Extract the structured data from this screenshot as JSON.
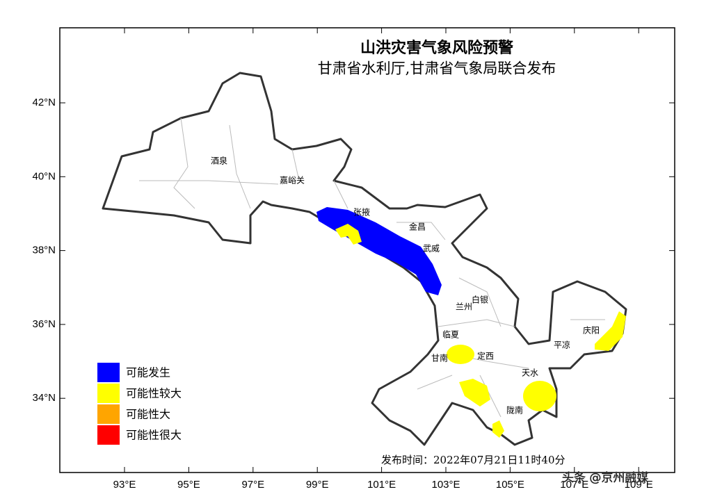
{
  "header": {
    "title": "山洪灾害气象风险预警",
    "subtitle": "甘肃省水利厅,甘肃省气象局联合发布"
  },
  "axes": {
    "latitude": [
      "42°N",
      "40°N",
      "38°N",
      "36°N",
      "34°N"
    ],
    "longitude": [
      "93°E",
      "95°E",
      "97°E",
      "99°E",
      "101°E",
      "103°E",
      "105°E",
      "107°E",
      "109°E"
    ]
  },
  "places": [
    "酒泉",
    "嘉峪关",
    "张掖",
    "金昌",
    "武威",
    "白银",
    "兰州",
    "临夏",
    "庆阳",
    "平凉",
    "甘南",
    "定西",
    "天水",
    "陇南"
  ],
  "legend": [
    {
      "label": "可能发生",
      "color": "#0000ff"
    },
    {
      "label": "可能性较大",
      "color": "#ffff00"
    },
    {
      "label": "可能性大",
      "color": "#ffa500"
    },
    {
      "label": "可能性很大",
      "color": "#ff0000"
    }
  ],
  "footer": {
    "release_time": "发布时间：2022年07月21日11时40分",
    "watermark": "头条 @京州融媒"
  }
}
